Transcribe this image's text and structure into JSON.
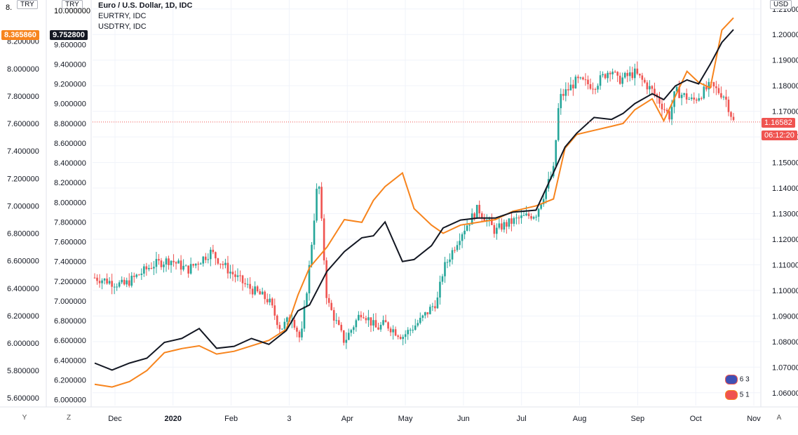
{
  "legend": {
    "title": "Euro / U.S. Dollar, 1D, IDC",
    "series2": "EURTRY, IDC",
    "series3": "USDTRY, IDC"
  },
  "scales": {
    "left_unit_a": "TRY",
    "left_unit_b": "TRY",
    "right_unit": "USD",
    "left_a_ticks": [
      "5.600000",
      "5.800000",
      "6.000000",
      "6.200000",
      "6.400000",
      "6.600000",
      "6.800000",
      "7.000000",
      "7.200000",
      "7.400000",
      "7.600000",
      "7.800000",
      "8.000000",
      "8.200000"
    ],
    "left_b_ticks": [
      "6.000000",
      "6.200000",
      "6.400000",
      "6.600000",
      "6.800000",
      "7.000000",
      "7.200000",
      "7.400000",
      "7.600000",
      "7.800000",
      "8.000000",
      "8.200000",
      "8.400000",
      "8.600000",
      "8.800000",
      "9.000000",
      "9.200000",
      "9.400000",
      "9.600000",
      "10.000000"
    ],
    "right_ticks": [
      "1.06000",
      "1.07000",
      "1.08000",
      "1.09000",
      "1.10000",
      "1.11000",
      "1.12000",
      "1.13000",
      "1.14000",
      "1.15000",
      "1.16000",
      "1.17000",
      "1.18000",
      "1.19000",
      "1.20000",
      "1.21000"
    ],
    "left_a_top_partial": "8.",
    "left_b_top_partial": "10.000000"
  },
  "last_values": {
    "eurtry": "8.365860",
    "usdtry": "9.752800",
    "eurusd": "1.16582",
    "countdown": "06:12:20"
  },
  "x_axis": {
    "labels": [
      "Dec",
      "2020",
      "Feb",
      "3",
      "Apr",
      "May",
      "Jun",
      "Jul",
      "Aug",
      "Sep",
      "Oct",
      "Nov"
    ]
  },
  "bottom_buttons": {
    "y": "Y",
    "z": "Z",
    "a": "A"
  },
  "events": {
    "row1_a": "6",
    "row1_b": "3",
    "row2_a": "5",
    "row2_b": "1"
  },
  "colors": {
    "up": "#26a69a",
    "down": "#ef5350",
    "eurtry_line": "#f7841d",
    "usdtry_line": "#131722",
    "grid": "#f0f3fa",
    "last_price_line": "#ef5350"
  },
  "chart_data": {
    "type": "line",
    "title": "Euro / U.S. Dollar, 1D, IDC",
    "x_labels": [
      "Dec",
      "2020",
      "Feb",
      "3",
      "Apr",
      "May",
      "Jun",
      "Jul",
      "Aug",
      "Sep",
      "Oct",
      "Nov"
    ],
    "series": [
      {
        "name": "Euro / U.S. Dollar",
        "kind": "candlestick-close",
        "axis": "right",
        "x": [
          0,
          0.5,
          1,
          1.3,
          1.6,
          2,
          2.3,
          2.6,
          3,
          3.2,
          3.4,
          3.55,
          3.7,
          3.85,
          4,
          4.3,
          4.6,
          4.85,
          5,
          5.3,
          5.6,
          5.9,
          6,
          6.3,
          6.6,
          6.9,
          7,
          7.3,
          7.6,
          7.9,
          8,
          8.3,
          8.6,
          8.9,
          9,
          9.3,
          9.6,
          9.9,
          10,
          10.3,
          10.6,
          10.85,
          11
        ],
        "values": [
          1.105,
          1.102,
          1.11,
          1.112,
          1.108,
          1.115,
          1.108,
          1.102,
          1.096,
          1.085,
          1.09,
          1.08,
          1.11,
          1.145,
          1.096,
          1.08,
          1.092,
          1.085,
          1.087,
          1.082,
          1.088,
          1.096,
          1.108,
          1.122,
          1.132,
          1.123,
          1.125,
          1.128,
          1.13,
          1.147,
          1.175,
          1.182,
          1.18,
          1.187,
          1.182,
          1.185,
          1.178,
          1.168,
          1.178,
          1.174,
          1.18,
          1.176,
          1.166
        ]
      },
      {
        "name": "EURTRY",
        "axis": "left_a",
        "x": [
          0,
          0.3,
          0.6,
          0.9,
          1.2,
          1.5,
          1.8,
          2.1,
          2.4,
          2.7,
          3,
          3.3,
          3.5,
          3.7,
          4,
          4.3,
          4.6,
          4.8,
          5,
          5.3,
          5.5,
          5.8,
          6,
          6.3,
          6.6,
          6.9,
          7.2,
          7.6,
          7.9,
          8.1,
          8.3,
          8.6,
          8.9,
          9.1,
          9.3,
          9.6,
          9.8,
          10,
          10.2,
          10.4,
          10.6,
          10.8,
          11
        ],
        "values": [
          5.7,
          5.68,
          5.72,
          5.8,
          5.93,
          5.96,
          5.98,
          5.92,
          5.94,
          5.98,
          6.02,
          6.1,
          6.35,
          6.55,
          6.7,
          6.9,
          6.88,
          7.04,
          7.14,
          7.24,
          6.98,
          6.86,
          6.8,
          6.86,
          6.88,
          6.9,
          6.96,
          7.0,
          7.05,
          7.42,
          7.52,
          7.55,
          7.58,
          7.6,
          7.7,
          7.78,
          7.62,
          7.8,
          7.98,
          7.9,
          7.86,
          8.28,
          8.37
        ]
      },
      {
        "name": "USDTRY",
        "axis": "left_b",
        "x": [
          0,
          0.3,
          0.6,
          0.9,
          1.2,
          1.5,
          1.8,
          2.1,
          2.4,
          2.7,
          3,
          3.3,
          3.5,
          3.7,
          4,
          4.3,
          4.6,
          4.8,
          5,
          5.3,
          5.5,
          5.8,
          6,
          6.3,
          6.6,
          6.9,
          7.2,
          7.6,
          7.9,
          8.1,
          8.3,
          8.6,
          8.9,
          9.1,
          9.3,
          9.6,
          9.8,
          10,
          10.2,
          10.4,
          10.6,
          10.8,
          11
        ],
        "values": [
          6.37,
          6.3,
          6.37,
          6.42,
          6.58,
          6.62,
          6.72,
          6.52,
          6.54,
          6.62,
          6.56,
          6.7,
          6.9,
          6.96,
          7.3,
          7.5,
          7.64,
          7.66,
          7.8,
          7.4,
          7.42,
          7.56,
          7.74,
          7.82,
          7.84,
          7.84,
          7.9,
          7.92,
          8.3,
          8.56,
          8.7,
          8.86,
          8.84,
          8.9,
          9.0,
          9.1,
          9.04,
          9.18,
          9.24,
          9.2,
          9.4,
          9.62,
          9.75
        ]
      }
    ],
    "right_axis_label": "USD",
    "left_axis_label": "TRY",
    "right_ylim": [
      1.055,
      1.2135
    ],
    "left_a_ylim": [
      5.545,
      8.5
    ],
    "left_b_ylim": [
      5.94,
      10.05
    ],
    "grid": true
  }
}
